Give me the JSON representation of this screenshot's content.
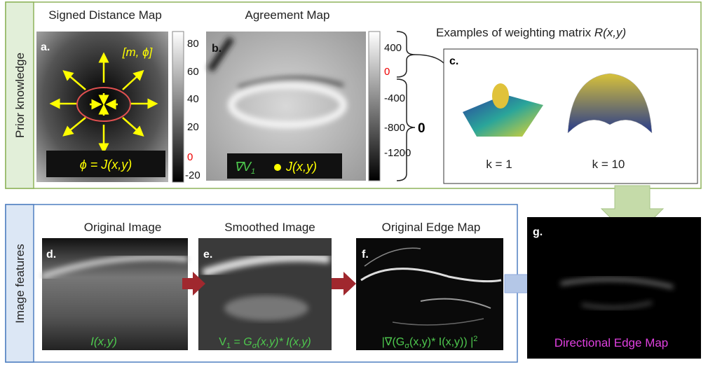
{
  "sections": {
    "prior": "Prior knowledge",
    "features": "Image features"
  },
  "panel_a": {
    "label": "a.",
    "title": "Signed Distance Map",
    "annotation": "[m, ϕ]",
    "formula": "ϕ = J(x,y)",
    "colorbar_ticks": [
      80,
      60,
      40,
      20,
      0,
      -20
    ]
  },
  "panel_b": {
    "label": "b.",
    "title": "Agreement Map",
    "formula": [
      "∇V",
      "1",
      "J(x,y)"
    ],
    "colorbar_ticks": [
      400,
      0,
      -400,
      -800,
      -1200
    ],
    "brace_label": "0"
  },
  "panel_c": {
    "label": "c.",
    "title": [
      "Examples of weighting matrix ",
      "R(x,y)"
    ],
    "captions": [
      "k = 1",
      "k = 10"
    ]
  },
  "panel_d": {
    "label": "d.",
    "title": "Original Image",
    "formula": "I(x,y)"
  },
  "panel_e": {
    "label": "e.",
    "title": "Smoothed Image",
    "formula": [
      "V",
      "1",
      " = ",
      "G",
      "σ",
      "(x,y)* I(x,y)"
    ]
  },
  "panel_f": {
    "label": "f.",
    "title": "Original Edge Map",
    "formula": [
      "|∇(G",
      "σ",
      "(x,y)* I(x,y)) |",
      "2"
    ]
  },
  "panel_g": {
    "label": "g.",
    "caption": "Directional Edge Map"
  }
}
